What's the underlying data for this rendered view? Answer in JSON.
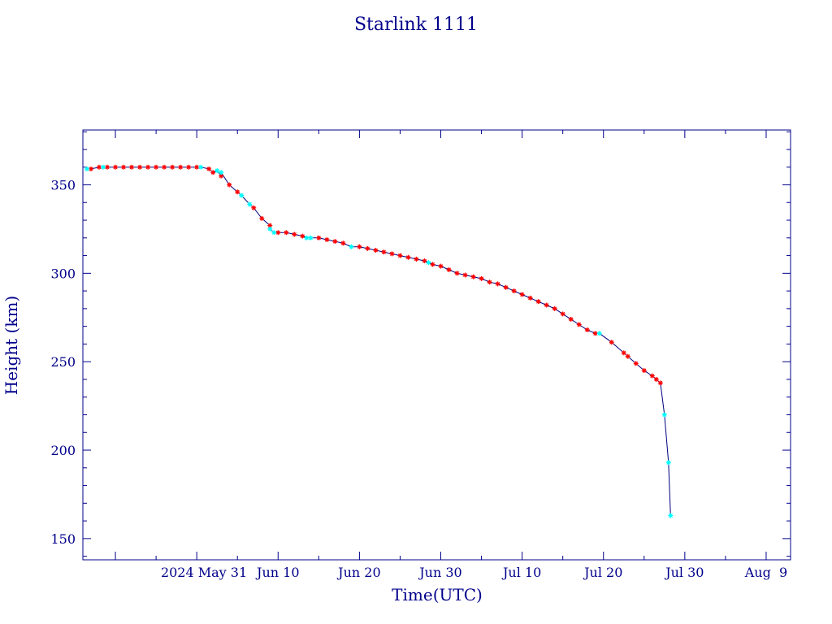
{
  "chart_data": {
    "type": "scatter",
    "title": "Starlink 1111",
    "xlabel": "Time(UTC)",
    "ylabel": "Height (km)",
    "xlim": [
      "2024-05-17",
      "2024-08-12"
    ],
    "ylim": [
      138,
      381
    ],
    "x_ticks": [
      "2024-05-31",
      "2024-06-10",
      "2024-06-20",
      "2024-06-30",
      "2024-07-10",
      "2024-07-20",
      "2024-07-30",
      "2024-08-09"
    ],
    "x_tick_labels": [
      "2024 May 31",
      "Jun 10",
      "Jun 20",
      "Jun 30",
      "Jul 10",
      "Jul 20",
      "Jul 30",
      "Aug  9"
    ],
    "y_ticks": [
      150,
      200,
      250,
      300,
      350
    ],
    "y_tick_labels": [
      "150",
      "200",
      "250",
      "300",
      "350"
    ],
    "grid": false,
    "colors": {
      "axes": "#00008b",
      "line": "#000080",
      "red_markers": "#ff0000",
      "cyan_markers": "#00ffff"
    },
    "series": [
      {
        "color": "#ff0000",
        "marker": "asterisk",
        "points": [
          [
            "2024-05-18T00:00",
            359
          ],
          [
            "2024-05-19T00:00",
            360
          ],
          [
            "2024-05-20T00:00",
            360
          ],
          [
            "2024-05-21T00:00",
            360
          ],
          [
            "2024-05-22T00:00",
            360
          ],
          [
            "2024-05-23T00:00",
            360
          ],
          [
            "2024-05-24T00:00",
            360
          ],
          [
            "2024-05-25T00:00",
            360
          ],
          [
            "2024-05-26T00:00",
            360
          ],
          [
            "2024-05-27T00:00",
            360
          ],
          [
            "2024-05-28T00:00",
            360
          ],
          [
            "2024-05-29T00:00",
            360
          ],
          [
            "2024-05-30T00:00",
            360
          ],
          [
            "2024-05-31T00:00",
            360
          ],
          [
            "2024-06-01T12:00",
            359
          ],
          [
            "2024-06-02T00:00",
            357
          ],
          [
            "2024-06-03T00:00",
            355
          ],
          [
            "2024-06-04T00:00",
            350
          ],
          [
            "2024-06-05T00:00",
            346
          ],
          [
            "2024-06-07T00:00",
            337
          ],
          [
            "2024-06-08T00:00",
            331
          ],
          [
            "2024-06-09T00:00",
            327
          ],
          [
            "2024-06-10T00:00",
            323
          ],
          [
            "2024-06-11T00:00",
            323
          ],
          [
            "2024-06-12T00:00",
            322
          ],
          [
            "2024-06-13T00:00",
            321
          ],
          [
            "2024-06-15T00:00",
            320
          ],
          [
            "2024-06-16T00:00",
            319
          ],
          [
            "2024-06-17T00:00",
            318
          ],
          [
            "2024-06-18T00:00",
            317
          ],
          [
            "2024-06-20T00:00",
            315
          ],
          [
            "2024-06-21T00:00",
            314
          ],
          [
            "2024-06-22T00:00",
            313
          ],
          [
            "2024-06-23T00:00",
            312
          ],
          [
            "2024-06-24T00:00",
            311
          ],
          [
            "2024-06-25T00:00",
            310
          ],
          [
            "2024-06-26T00:00",
            309
          ],
          [
            "2024-06-27T00:00",
            308
          ],
          [
            "2024-06-28T00:00",
            307
          ],
          [
            "2024-06-29T00:00",
            305
          ],
          [
            "2024-06-30T00:00",
            304
          ],
          [
            "2024-07-01T00:00",
            302
          ],
          [
            "2024-07-02T00:00",
            300
          ],
          [
            "2024-07-03T00:00",
            299
          ],
          [
            "2024-07-04T00:00",
            298
          ],
          [
            "2024-07-05T00:00",
            297
          ],
          [
            "2024-07-06T00:00",
            295
          ],
          [
            "2024-07-07T00:00",
            294
          ],
          [
            "2024-07-08T00:00",
            292
          ],
          [
            "2024-07-09T00:00",
            290
          ],
          [
            "2024-07-10T00:00",
            288
          ],
          [
            "2024-07-11T00:00",
            286
          ],
          [
            "2024-07-12T00:00",
            284
          ],
          [
            "2024-07-13T00:00",
            282
          ],
          [
            "2024-07-14T00:00",
            280
          ],
          [
            "2024-07-15T00:00",
            277
          ],
          [
            "2024-07-16T00:00",
            274
          ],
          [
            "2024-07-17T00:00",
            271
          ],
          [
            "2024-07-18T00:00",
            268
          ],
          [
            "2024-07-19T00:00",
            266
          ],
          [
            "2024-07-21T00:00",
            261
          ],
          [
            "2024-07-22T12:00",
            255
          ],
          [
            "2024-07-23T00:00",
            253
          ],
          [
            "2024-07-24T00:00",
            249
          ],
          [
            "2024-07-25T00:00",
            245
          ],
          [
            "2024-07-26T00:00",
            242
          ],
          [
            "2024-07-26T12:00",
            240
          ],
          [
            "2024-07-27T00:00",
            238
          ]
        ]
      },
      {
        "color": "#00ffff",
        "marker": "asterisk",
        "points": [
          [
            "2024-05-17T12:00",
            359
          ],
          [
            "2024-05-19T12:00",
            360
          ],
          [
            "2024-05-31T12:00",
            360
          ],
          [
            "2024-06-02T12:00",
            358
          ],
          [
            "2024-06-03T00:00",
            357
          ],
          [
            "2024-06-05T12:00",
            344
          ],
          [
            "2024-06-06T12:00",
            339
          ],
          [
            "2024-06-09T00:00",
            325
          ],
          [
            "2024-06-09T12:00",
            323
          ],
          [
            "2024-06-13T12:00",
            320
          ],
          [
            "2024-06-14T00:00",
            320
          ],
          [
            "2024-06-19T00:00",
            315
          ],
          [
            "2024-06-28T12:00",
            306
          ],
          [
            "2024-07-19T12:00",
            266
          ],
          [
            "2024-07-27T12:00",
            220
          ],
          [
            "2024-07-28T00:00",
            193
          ],
          [
            "2024-07-28T06:00",
            163
          ]
        ]
      }
    ]
  }
}
